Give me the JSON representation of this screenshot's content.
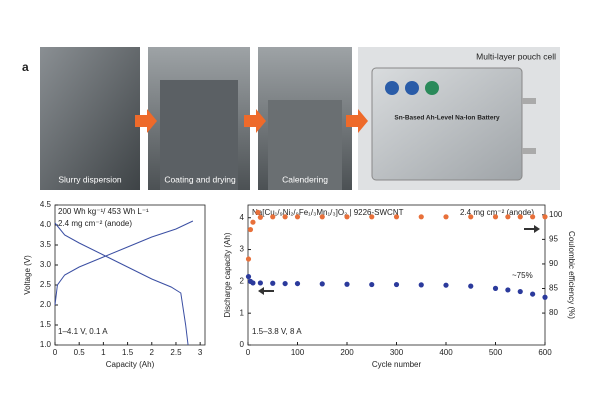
{
  "panel_label": "a",
  "photos": [
    {
      "caption": "Slurry dispersion"
    },
    {
      "caption": "Coating and drying"
    },
    {
      "caption": "Calendering"
    },
    {
      "caption": "Multi-layer pouch cell"
    }
  ],
  "pouch_label": "Sn-Based Ah-Level Na-Ion Battery",
  "chart_data": [
    {
      "type": "line",
      "xlabel": "Capacity (Ah)",
      "ylabel": "Voltage (V)",
      "xlim": [
        0,
        3.1
      ],
      "ylim": [
        1.0,
        4.5
      ],
      "xticks": [
        0,
        0.5,
        1,
        1.5,
        2,
        2.5,
        3
      ],
      "yticks": [
        {
          "value": 1,
          "label": "1.0"
        },
        1.5,
        {
          "value": 2,
          "label": "2.0"
        },
        2.5,
        {
          "value": 3,
          "label": "3.0"
        },
        3.5,
        {
          "value": 4,
          "label": "4.0"
        },
        4.5
      ],
      "annotations": [
        "200 Wh kg⁻¹/ 453 Wh L⁻¹",
        "2.4 mg cm⁻² (anode)",
        "1–4.1 V, 0.1 A"
      ],
      "series": [
        {
          "color": "#3b4fa3",
          "x": [
            0,
            0.05,
            0.2,
            0.5,
            1,
            1.5,
            2,
            2.5,
            2.85
          ],
          "values": [
            2.0,
            2.5,
            2.75,
            2.95,
            3.2,
            3.45,
            3.7,
            3.9,
            4.1
          ]
        },
        {
          "color": "#3b4fa3",
          "x": [
            0,
            0.2,
            0.5,
            1,
            1.5,
            2,
            2.4,
            2.6,
            2.7,
            2.75
          ],
          "values": [
            4.05,
            3.75,
            3.55,
            3.25,
            2.95,
            2.65,
            2.45,
            2.3,
            1.5,
            1.0
          ]
        }
      ]
    },
    {
      "type": "scatter",
      "xlabel": "Cycle number",
      "ylabel": "Discharge capacity (Ah)",
      "y2label": "Coulombic efficiency (%)",
      "xlim": [
        0,
        600
      ],
      "ylim": [
        0,
        4.4
      ],
      "y2lim": [
        73.5,
        102
      ],
      "xticks": [
        0,
        100,
        200,
        300,
        400,
        500,
        600
      ],
      "yticks": [
        0,
        1,
        2,
        3,
        4
      ],
      "y2ticks": [
        80,
        85,
        90,
        95,
        100
      ],
      "annotations": [
        "Na[Cu₁/₉Ni₂/₉Fe₁/₃Mn₁/₃]O₂ | 9226-SWCNT",
        "2.4 mg cm⁻² (anode)",
        "~75%",
        "1.5–3.8 V, 8 A"
      ],
      "series": [
        {
          "color": "#2b3a9c",
          "x": [
            1,
            5,
            10,
            25,
            50,
            75,
            100,
            150,
            200,
            250,
            300,
            350,
            400,
            450,
            500,
            525,
            550,
            575,
            600
          ],
          "values": [
            2.15,
            2.0,
            1.95,
            1.95,
            1.94,
            1.93,
            1.93,
            1.92,
            1.91,
            1.9,
            1.9,
            1.89,
            1.88,
            1.85,
            1.78,
            1.73,
            1.68,
            1.6,
            1.5
          ]
        },
        {
          "color": "#e8703a",
          "axis": "y2",
          "x": [
            1,
            5,
            10,
            20,
            25,
            50,
            75,
            100,
            150,
            200,
            250,
            300,
            350,
            400,
            450,
            500,
            525,
            550,
            575,
            600
          ],
          "values": [
            91,
            97,
            98.5,
            100.5,
            99.5,
            99.6,
            99.6,
            99.6,
            99.6,
            99.6,
            99.6,
            99.6,
            99.6,
            99.6,
            99.6,
            99.6,
            99.6,
            99.6,
            99.6,
            99.6
          ]
        }
      ]
    }
  ]
}
